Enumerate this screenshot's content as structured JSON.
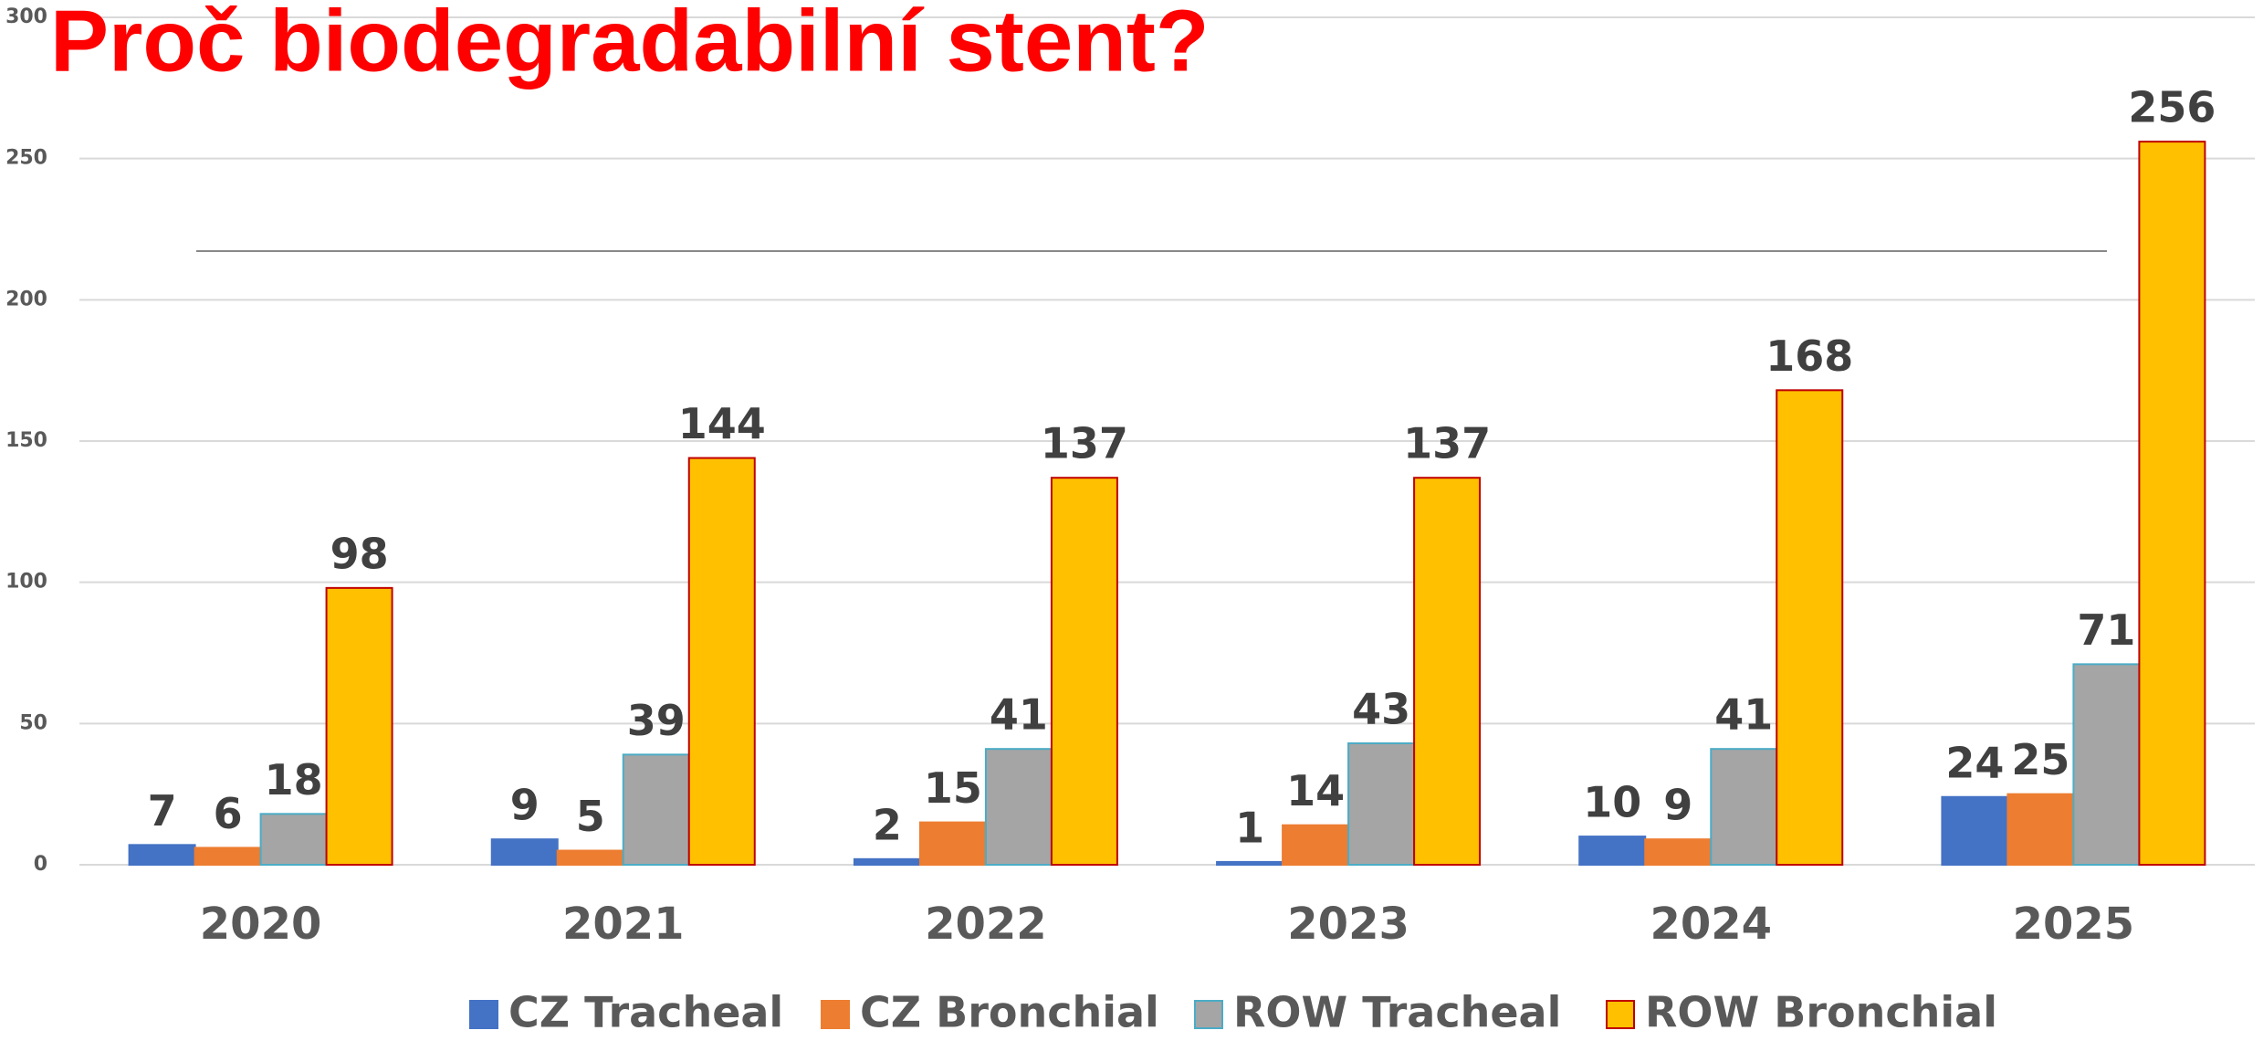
{
  "chart_data": {
    "type": "bar",
    "title": "Proč biodegradabilní stent?",
    "categories": [
      "2020",
      "2021",
      "2022",
      "2023",
      "2024",
      "2025"
    ],
    "series": [
      {
        "name": "CZ Tracheal",
        "color": "#4472c4",
        "edgecolor": "#4472c4",
        "values": [
          7,
          9,
          2,
          1,
          10,
          24
        ]
      },
      {
        "name": "CZ Bronchial",
        "color": "#ed7d31",
        "edgecolor": "#ed7d31",
        "values": [
          6,
          5,
          15,
          14,
          9,
          25
        ]
      },
      {
        "name": "ROW Tracheal",
        "color": "#a5a5a5",
        "edgecolor": "#4bacc6",
        "values": [
          18,
          39,
          41,
          43,
          41,
          71
        ]
      },
      {
        "name": "ROW Bronchial",
        "color": "#ffc000",
        "edgecolor": "#c00000",
        "values": [
          98,
          144,
          137,
          137,
          168,
          256
        ]
      }
    ],
    "ylim": [
      0,
      300
    ],
    "yticks": [
      0,
      50,
      100,
      150,
      200,
      250,
      300
    ],
    "grid": true,
    "legend": "bottom"
  }
}
